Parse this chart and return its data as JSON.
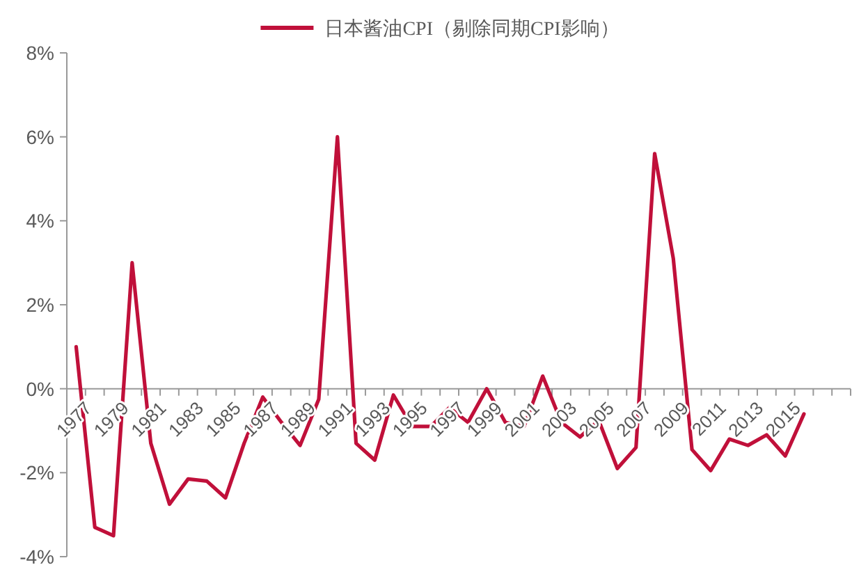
{
  "chart_data": {
    "type": "line",
    "categories": [
      "1977",
      null,
      "1979",
      null,
      "1981",
      null,
      "1983",
      null,
      "1985",
      null,
      "1987",
      null,
      "1989",
      null,
      "1991",
      null,
      "1993",
      null,
      "1995",
      null,
      "1997",
      null,
      "1999",
      null,
      "2001",
      null,
      "2003",
      null,
      "2005",
      null,
      "2007",
      null,
      "2009",
      null,
      "2011",
      null,
      "2013",
      null,
      "2015",
      null,
      null,
      null
    ],
    "series": [
      {
        "name": "日本酱油CPI（剔除同期CPI影响）",
        "color": "#c0103a",
        "values": [
          1.0,
          -3.3,
          -3.5,
          3.0,
          -1.3,
          -2.75,
          -2.15,
          -2.2,
          -2.6,
          -1.3,
          -0.2,
          -0.8,
          -1.35,
          -0.25,
          6.0,
          -1.3,
          -1.7,
          -0.15,
          -0.9,
          -0.9,
          -0.45,
          -0.8,
          0.0,
          -0.8,
          -0.9,
          0.3,
          -0.8,
          -1.15,
          -0.75,
          -1.9,
          -1.4,
          5.6,
          3.1,
          -1.45,
          -1.95,
          -1.2,
          -1.35,
          -1.1,
          -1.6,
          -0.6,
          null,
          null
        ]
      }
    ],
    "ylim": [
      -4,
      8
    ],
    "yticks": [
      {
        "value": -4,
        "label": "-4%"
      },
      {
        "value": -2,
        "label": "-2%"
      },
      {
        "value": 0,
        "label": "0%"
      },
      {
        "value": 2,
        "label": "2%"
      },
      {
        "value": 4,
        "label": "4%"
      },
      {
        "value": 6,
        "label": "6%"
      },
      {
        "value": 8,
        "label": "8%"
      }
    ],
    "legend": "top",
    "grid": false
  }
}
